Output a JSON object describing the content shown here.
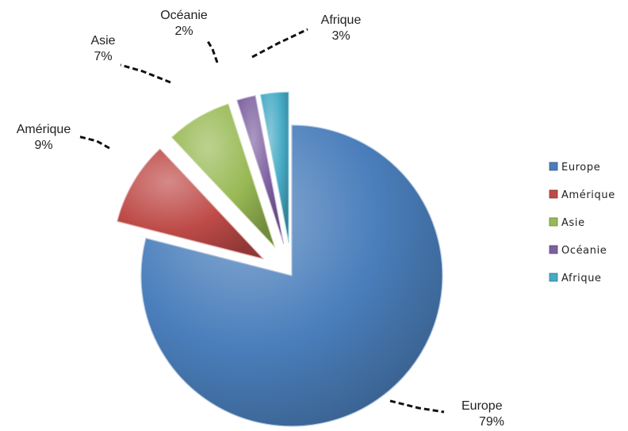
{
  "chart_data": {
    "type": "pie",
    "style": "exploded-3d",
    "title": "",
    "slices": [
      {
        "label": "Europe",
        "value": 79,
        "value_label": "79%",
        "color": "#4A7EBB"
      },
      {
        "label": "Amérique",
        "value": 9,
        "value_label": "9%",
        "color": "#BE4B48"
      },
      {
        "label": "Asie",
        "value": 7,
        "value_label": "7%",
        "color": "#98B954"
      },
      {
        "label": "Océanie",
        "value": 2,
        "value_label": "2%",
        "color": "#7D60A0"
      },
      {
        "label": "Afrique",
        "value": 3,
        "value_label": "3%",
        "color": "#46AAC5"
      }
    ],
    "legend": {
      "position": "right",
      "entries": [
        "Europe",
        "Amérique",
        "Asie",
        "Océanie",
        "Afrique"
      ]
    }
  }
}
